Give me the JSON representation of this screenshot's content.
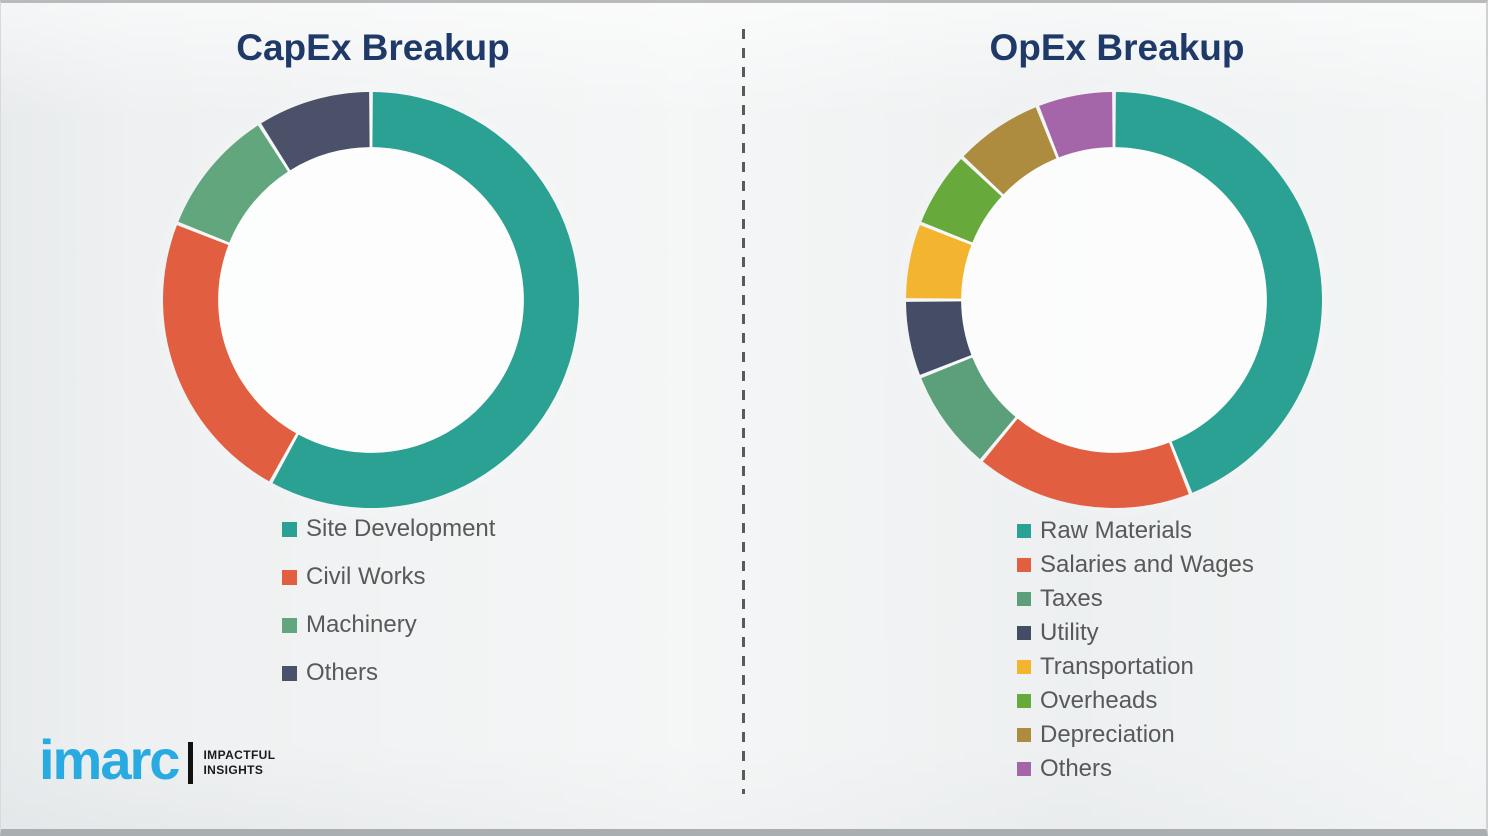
{
  "page": {
    "background_color": "#eef0f1",
    "divider_style": "vertical-dashed",
    "divider_color": "#5a5a5a",
    "title_color": "#1f3a68",
    "legend_text_color": "#595959"
  },
  "charts": [
    {
      "title": "CapEx Breakup"
    },
    {
      "title": "OpEx Breakup"
    }
  ],
  "chart_data": [
    {
      "type": "pie",
      "subtype": "donut",
      "title": "CapEx Breakup",
      "categories": [
        "Site Development",
        "Civil Works",
        "Machinery",
        "Others"
      ],
      "values": [
        58,
        23,
        10,
        9
      ],
      "unit": "percent",
      "colors": [
        "#2ba193",
        "#e15f40",
        "#61a67d",
        "#4a5168"
      ],
      "start_angle_deg": 0,
      "direction": "clockwise",
      "inner_radius_ratio": 0.735,
      "legend_position": "below-left",
      "data_labels": false
    },
    {
      "type": "pie",
      "subtype": "donut",
      "title": "OpEx Breakup",
      "categories": [
        "Raw Materials",
        "Salaries and Wages",
        "Taxes",
        "Utility",
        "Transportation",
        "Overheads",
        "Depreciation",
        "Others"
      ],
      "values": [
        44,
        17,
        8,
        6,
        6,
        6,
        7,
        6
      ],
      "unit": "percent",
      "colors": [
        "#2ba193",
        "#e15f40",
        "#5ca07b",
        "#454d66",
        "#f3b42f",
        "#68a93c",
        "#ad8c3f",
        "#a566a9"
      ],
      "start_angle_deg": 0,
      "direction": "clockwise",
      "inner_radius_ratio": 0.735,
      "legend_position": "below-left",
      "data_labels": false
    }
  ],
  "logo": {
    "brand": "imarc",
    "brand_color": "#29abe2",
    "tagline_line1": "IMPACTFUL",
    "tagline_line2": "INSIGHTS"
  }
}
